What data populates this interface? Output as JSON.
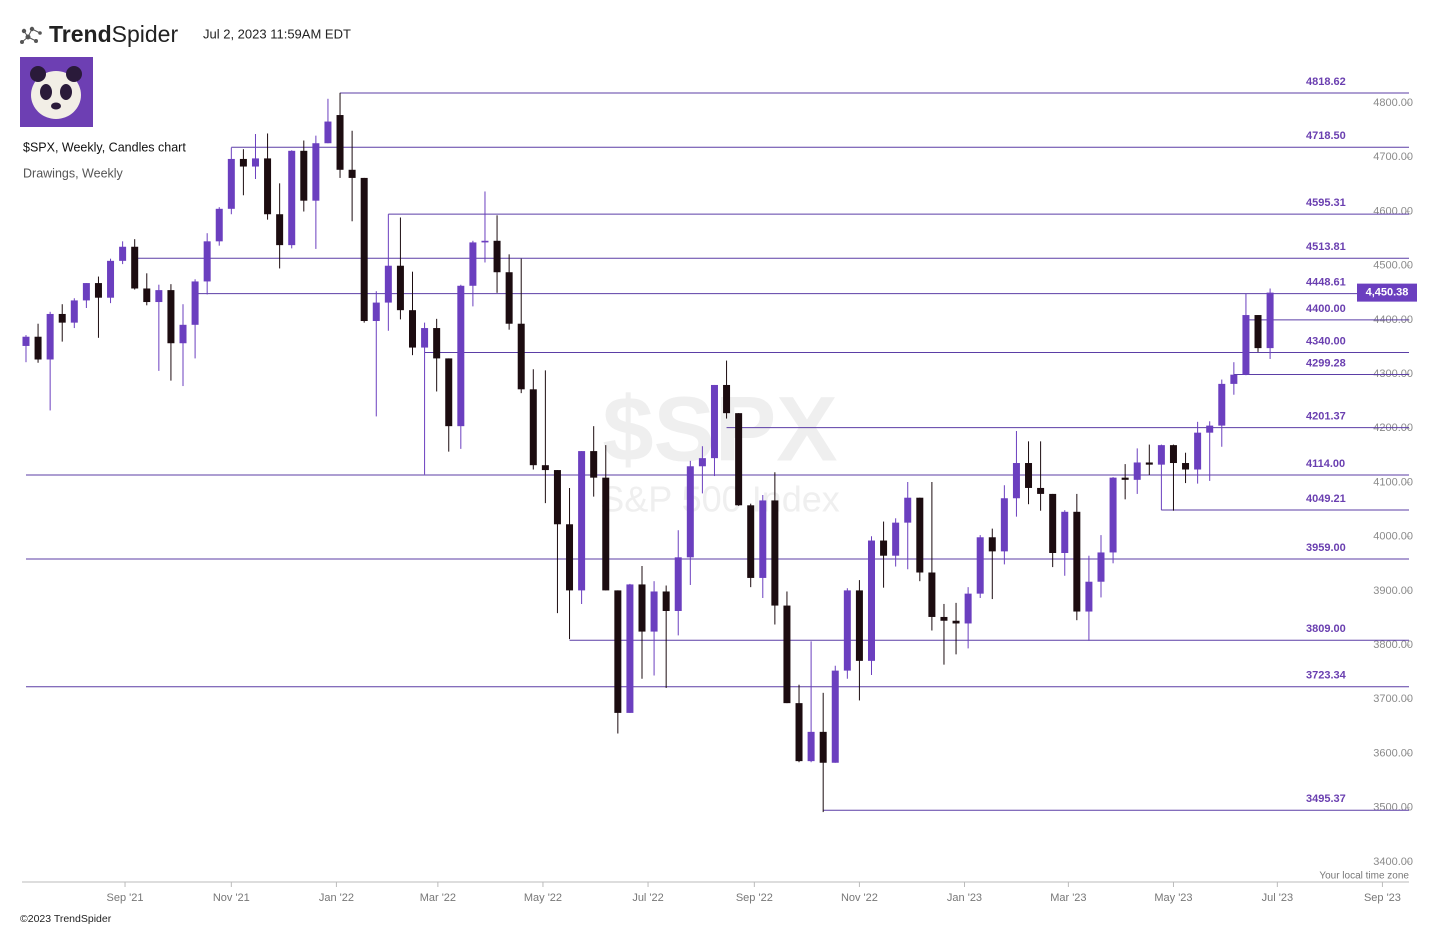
{
  "header": {
    "logo_bold": "Trend",
    "logo_light": "Spider",
    "timestamp": "Jul 2, 2023 11:59AM EDT"
  },
  "chart_data": {
    "type": "candlestick",
    "title": "$SPX, Weekly, Candles chart",
    "subtitle": "Drawings, Weekly",
    "watermark": "$SPX",
    "watermark_subtitle": "S&P 500 Index",
    "timezone_note": "Your local time zone",
    "footer": "©2023 TrendSpider",
    "up_color": "#6b3fbf",
    "down_color": "#1c0c10",
    "level_color": "#5b3ea6",
    "xlim": [
      -0.33,
      114.5
    ],
    "ylim": [
      3363,
      4898
    ],
    "xticks": [
      {
        "value": 8.2,
        "label": "Sep '21"
      },
      {
        "value": 17.0,
        "label": "Nov '21"
      },
      {
        "value": 25.7,
        "label": "Jan '22"
      },
      {
        "value": 34.1,
        "label": "Mar '22"
      },
      {
        "value": 42.8,
        "label": "May '22"
      },
      {
        "value": 51.5,
        "label": "Jul '22"
      },
      {
        "value": 60.3,
        "label": "Sep '22"
      },
      {
        "value": 69.0,
        "label": "Nov '22"
      },
      {
        "value": 77.7,
        "label": "Jan '23"
      },
      {
        "value": 86.3,
        "label": "Mar '23"
      },
      {
        "value": 95.0,
        "label": "May '23"
      },
      {
        "value": 103.6,
        "label": "Jul '23"
      },
      {
        "value": 112.3,
        "label": "Sep '23"
      }
    ],
    "yticks": [
      {
        "value": 3400,
        "label": "3400.00"
      },
      {
        "value": 3500,
        "label": "3500.00"
      },
      {
        "value": 3600,
        "label": "3600.00"
      },
      {
        "value": 3700,
        "label": "3700.00"
      },
      {
        "value": 3800,
        "label": "3800.00"
      },
      {
        "value": 3900,
        "label": "3900.00"
      },
      {
        "value": 4000,
        "label": "4000.00"
      },
      {
        "value": 4100,
        "label": "4100.00"
      },
      {
        "value": 4200,
        "label": "4200.00"
      },
      {
        "value": 4300,
        "label": "4300.00"
      },
      {
        "value": 4400,
        "label": "4400.00"
      },
      {
        "value": 4500,
        "label": "4500.00"
      },
      {
        "value": 4600,
        "label": "4600.00"
      },
      {
        "value": 4700,
        "label": "4700.00"
      },
      {
        "value": 4800,
        "label": "4800.00"
      }
    ],
    "last_price": 4450.38,
    "last_price_label": "4,450.38",
    "levels": [
      {
        "value": 4818.62,
        "from": 26
      },
      {
        "value": 4718.5,
        "label": "4718.50",
        "from": 17
      },
      {
        "value": 4595.31,
        "from": 30
      },
      {
        "value": 4513.81,
        "from": 9
      },
      {
        "value": 4448.61,
        "from": 14
      },
      {
        "value": 4400,
        "label": "4400.00",
        "from": 101
      },
      {
        "value": 4340,
        "label": "4340.00",
        "from": 33
      },
      {
        "value": 4299.28,
        "from": 100
      },
      {
        "value": 4201.37,
        "from": 58
      },
      {
        "value": 4114,
        "label": "4114.00",
        "from": 0
      },
      {
        "value": 4049.21,
        "from": 94
      },
      {
        "value": 3959,
        "label": "3959.00",
        "from": 0
      },
      {
        "value": 3809,
        "label": "3809.00",
        "from": 45
      },
      {
        "value": 3723.34,
        "from": 0
      },
      {
        "value": 3495.37,
        "from": 66
      }
    ],
    "open": [
      4352,
      4369,
      4327,
      4411,
      4395,
      4436,
      4468,
      4441,
      4509,
      4535,
      4458,
      4433,
      4455,
      4357,
      4391,
      4471,
      4545,
      4605,
      4697,
      4683,
      4698,
      4595,
      4538,
      4712,
      4620,
      4726,
      4778,
      4677,
      4662,
      4398,
      4432,
      4500,
      4418,
      4349,
      4385,
      4329,
      4204,
      4463,
      4543,
      4546,
      4488,
      4393,
      4272,
      4132,
      4123,
      4023,
      3901,
      4158,
      4109,
      3901,
      3675,
      3912,
      3825,
      3899,
      3863,
      3962,
      4130,
      4145,
      4280,
      4228,
      4058,
      3924,
      4067,
      3873,
      3693,
      3586,
      3640,
      3583,
      3753,
      3901,
      3771,
      3993,
      3965,
      4026,
      4072,
      3934,
      3852,
      3845,
      3840,
      3895,
      3999,
      3973,
      4071,
      4136,
      4090,
      4079,
      3970,
      4046,
      3862,
      3917,
      3971,
      4109,
      4105,
      4137,
      4133,
      4169,
      4136,
      4124,
      4192,
      4205,
      4282,
      4299,
      4409,
      4348
    ],
    "high": [
      4372,
      4393,
      4415,
      4429,
      4440,
      4468,
      4480,
      4513,
      4545,
      4549,
      4486,
      4465,
      4466,
      4429,
      4475,
      4560,
      4608,
      4718,
      4715,
      4743,
      4744,
      4652,
      4713,
      4731,
      4740,
      4808,
      4819,
      4749,
      4662,
      4453,
      4595,
      4589,
      4489,
      4395,
      4402,
      4329,
      4465,
      4546,
      4637,
      4593,
      4521,
      4513,
      4309,
      4307,
      4123,
      4090,
      4158,
      4204,
      4169,
      3901,
      3913,
      3946,
      3918,
      3910,
      4012,
      4140,
      4167,
      4280,
      4325,
      4228,
      4061,
      4077,
      4119,
      3899,
      3727,
      3807,
      3712,
      3762,
      3905,
      3920,
      4001,
      4028,
      4034,
      4101,
      4072,
      4101,
      3876,
      3878,
      3907,
      4003,
      4015,
      4095,
      4195,
      4176,
      4176,
      4079,
      4049,
      4079,
      3965,
      4003,
      4110,
      4134,
      4163,
      4170,
      4170,
      4170,
      4155,
      4212,
      4213,
      4290,
      4322,
      4448,
      4409,
      4458
    ],
    "low": [
      4322,
      4321,
      4233,
      4360,
      4385,
      4422,
      4367,
      4431,
      4503,
      4456,
      4427,
      4306,
      4288,
      4278,
      4329,
      4447,
      4537,
      4595,
      4630,
      4660,
      4585,
      4495,
      4532,
      4600,
      4531,
      4726,
      4662,
      4582,
      4395,
      4222,
      4380,
      4401,
      4335,
      4115,
      4268,
      4157,
      4162,
      4425,
      4506,
      4450,
      4382,
      4265,
      4124,
      4062,
      3859,
      3811,
      3876,
      4074,
      3901,
      3637,
      3675,
      3738,
      3744,
      3721,
      3818,
      3911,
      4080,
      4112,
      4218,
      4057,
      3907,
      3887,
      3838,
      3693,
      3584,
      3584,
      3492,
      3583,
      3738,
      3698,
      3745,
      3906,
      3945,
      3940,
      3918,
      3827,
      3764,
      3783,
      3794,
      3887,
      3885,
      3949,
      4037,
      4060,
      4048,
      3944,
      3928,
      3846,
      3808,
      3888,
      3951,
      4069,
      4079,
      4114,
      4049,
      4048,
      4099,
      4098,
      4103,
      4166,
      4262,
      4298,
      4341,
      4328
    ],
    "close": [
      4369,
      4327,
      4411,
      4395,
      4436,
      4468,
      4441,
      4509,
      4535,
      4458,
      4433,
      4455,
      4357,
      4391,
      4471,
      4545,
      4605,
      4697,
      4683,
      4698,
      4595,
      4538,
      4712,
      4620,
      4726,
      4766,
      4677,
      4662,
      4398,
      4432,
      4500,
      4418,
      4349,
      4385,
      4329,
      4204,
      4463,
      4543,
      4546,
      4488,
      4393,
      4272,
      4132,
      4123,
      4023,
      3901,
      4158,
      4109,
      3901,
      3675,
      3912,
      3825,
      3899,
      3863,
      3962,
      4130,
      4145,
      4280,
      4228,
      4058,
      3924,
      4067,
      3873,
      3693,
      3586,
      3640,
      3583,
      3753,
      3901,
      3771,
      3993,
      3965,
      4026,
      4072,
      3934,
      3852,
      3845,
      3840,
      3895,
      3999,
      3973,
      4071,
      4136,
      4090,
      4079,
      3970,
      4046,
      3862,
      3917,
      3971,
      4109,
      4105,
      4137,
      4133,
      4169,
      4136,
      4124,
      4192,
      4205,
      4282,
      4299,
      4409,
      4348,
      4450.38
    ]
  }
}
